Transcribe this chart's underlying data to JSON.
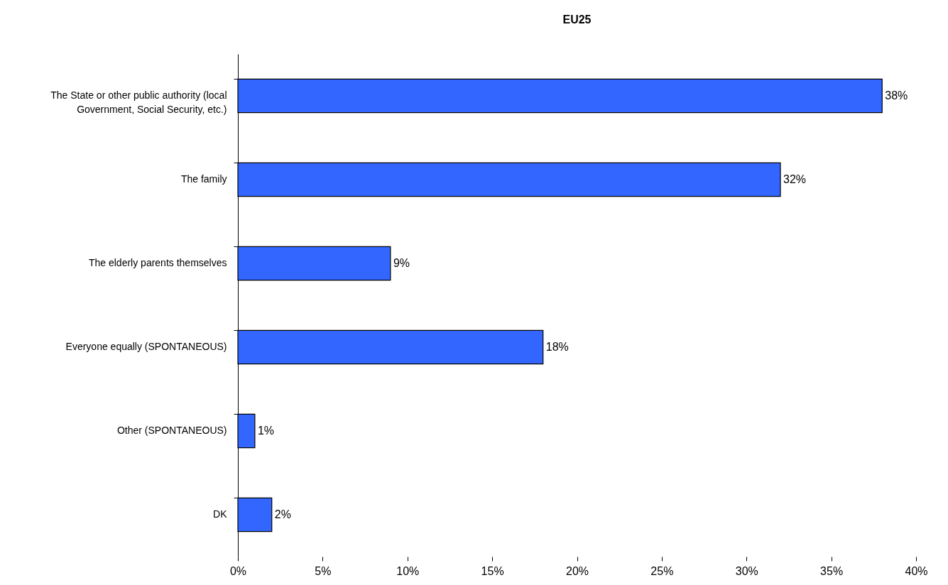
{
  "chart_data": {
    "type": "bar",
    "orientation": "horizontal",
    "title": "EU25",
    "categories": [
      "The State or other public authority (local Government, Social Security, etc.)",
      "The family",
      "The elderly parents themselves",
      "Everyone equally (SPONTANEOUS)",
      "Other (SPONTANEOUS)",
      "DK"
    ],
    "values": [
      38,
      32,
      9,
      18,
      1,
      2
    ],
    "value_labels": [
      "38%",
      "32%",
      "9%",
      "18%",
      "1%",
      "2%"
    ],
    "color": "#3366ff",
    "xlim": [
      0,
      40
    ],
    "xticks": [
      {
        "value": 0,
        "label": "0%"
      },
      {
        "value": 5,
        "label": "5%"
      },
      {
        "value": 10,
        "label": "10%"
      },
      {
        "value": 15,
        "label": "15%"
      },
      {
        "value": 20,
        "label": "20%"
      },
      {
        "value": 25,
        "label": "25%"
      },
      {
        "value": 30,
        "label": "30%"
      },
      {
        "value": 35,
        "label": "35%"
      },
      {
        "value": 40,
        "label": "40%"
      }
    ],
    "grid": false
  }
}
